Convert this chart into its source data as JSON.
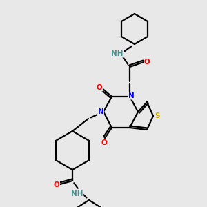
{
  "bg_color": "#e8e8e8",
  "atom_colors": {
    "N": "#0000ee",
    "O": "#ff0000",
    "S": "#ccaa00",
    "H": "#4a9090"
  },
  "bond_color": "#000000",
  "bond_width": 1.6,
  "fig_size": [
    3.0,
    3.0
  ],
  "dpi": 100
}
